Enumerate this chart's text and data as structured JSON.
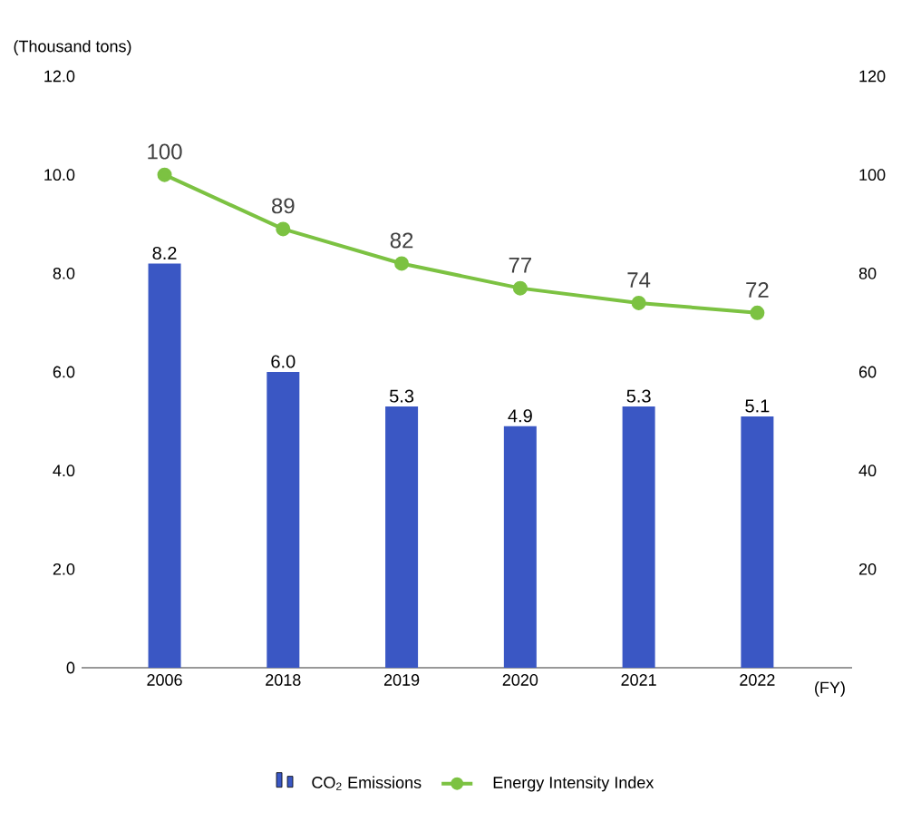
{
  "chart_data": {
    "type": "bar",
    "ylabel": "(Thousand tons)",
    "xlabel": "(FY)",
    "categories": [
      "2006",
      "2018",
      "2019",
      "2020",
      "2021",
      "2022"
    ],
    "series": [
      {
        "name": "CO$_{2}$ Emissions",
        "color": "#3a57c4",
        "values": [
          8.2,
          6.0,
          5.3,
          4.9,
          5.3,
          5.1
        ],
        "value_labels": [
          "8.2",
          "6.0",
          "5.3",
          "4.9",
          "5.3",
          "5.1"
        ]
      },
      {
        "name": "Energy Intensity Index",
        "type": "line",
        "axis": "y2",
        "color": "#7cc242",
        "marker": "circle",
        "line_style": "solid",
        "values": [
          100,
          89,
          82,
          77,
          74,
          72
        ]
      }
    ],
    "ylim": [
      0,
      12
    ],
    "yticks": [
      0,
      {
        "value": 2,
        "label": "2.0"
      },
      {
        "value": 4,
        "label": "4.0"
      },
      {
        "value": 6,
        "label": "6.0"
      },
      {
        "value": 8,
        "label": "8.0"
      },
      {
        "value": 10,
        "label": "10.0"
      },
      {
        "value": 12,
        "label": "12.0"
      }
    ],
    "y2lim": [
      0,
      120
    ],
    "y2ticks": [
      20,
      40,
      60,
      80,
      100,
      120
    ],
    "data_labels": true,
    "legend": "bottom",
    "grid": false
  }
}
